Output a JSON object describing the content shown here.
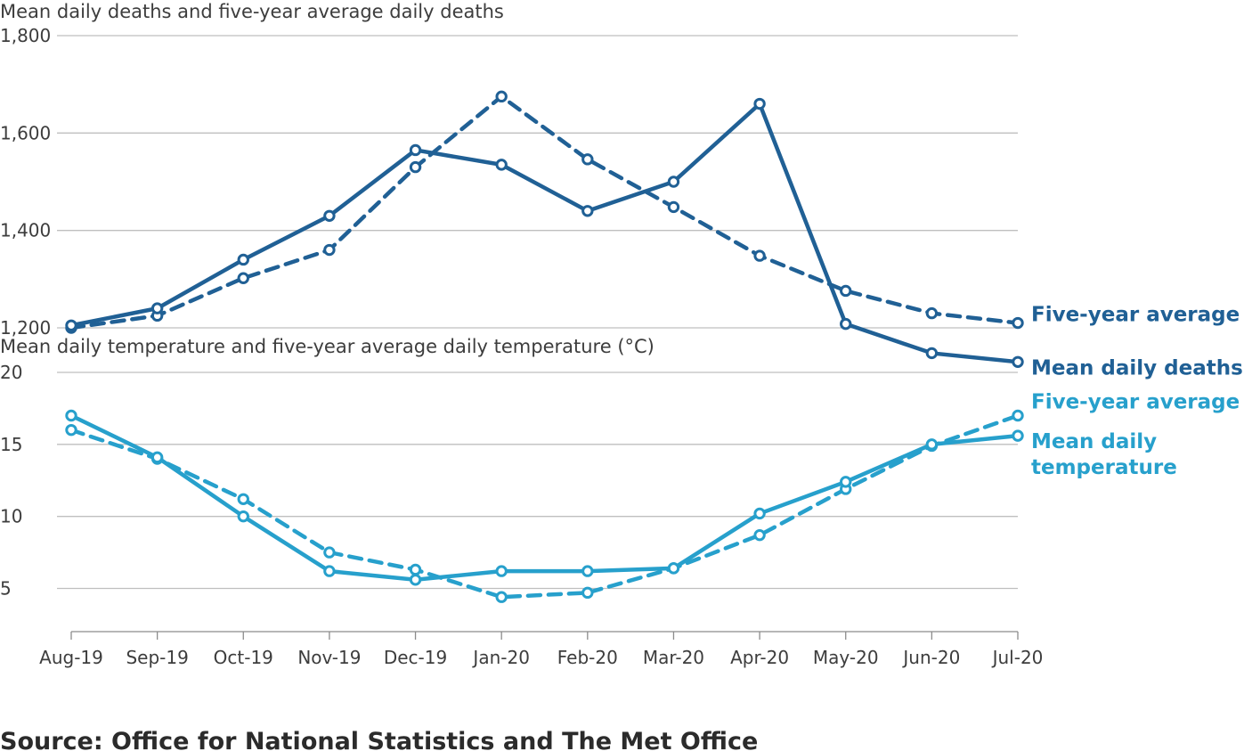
{
  "chart_data": [
    {
      "type": "line",
      "title": "Mean daily deaths and five-year average daily deaths",
      "categories": [
        "Aug-19",
        "Sep-19",
        "Oct-19",
        "Nov-19",
        "Dec-19",
        "Jan-20",
        "Feb-20",
        "Mar-20",
        "Apr-20",
        "May-20",
        "Jun-20",
        "Jul-20"
      ],
      "ylim": [
        1200,
        1800
      ],
      "yticks": [
        "1,200",
        "1,400",
        "1,600",
        "1,800"
      ],
      "yticks_values": [
        1200,
        1400,
        1600,
        1800
      ],
      "grid": true,
      "legend": "direct labels at line ends (right)",
      "color": "#206095",
      "series": [
        {
          "name": "Mean daily deaths",
          "style": "solid",
          "values": [
            1205,
            1240,
            1340,
            1430,
            1565,
            1535,
            1440,
            1500,
            1660,
            1208,
            1148,
            1130
          ]
        },
        {
          "name": "Five-year average",
          "style": "dashed",
          "values": [
            1200,
            1225,
            1302,
            1360,
            1530,
            1675,
            1546,
            1448,
            1348,
            1276,
            1230,
            1210
          ]
        }
      ]
    },
    {
      "type": "line",
      "title": "Mean daily temperature and five-year average daily temperature (°C)",
      "categories": [
        "Aug-19",
        "Sep-19",
        "Oct-19",
        "Nov-19",
        "Dec-19",
        "Jan-20",
        "Feb-20",
        "Mar-20",
        "Apr-20",
        "May-20",
        "Jun-20",
        "Jul-20"
      ],
      "ylim": [
        2,
        20
      ],
      "yticks": [
        "5",
        "10",
        "15",
        "20"
      ],
      "yticks_values": [
        5,
        10,
        15,
        20
      ],
      "grid": true,
      "legend": "direct labels at line ends (right)",
      "color": "#27a0cc",
      "series": [
        {
          "name": "Mean daily temperature",
          "label_lines": [
            "Mean daily",
            "temperature"
          ],
          "style": "solid",
          "values": [
            17.0,
            14.1,
            10.0,
            6.2,
            5.6,
            6.2,
            6.2,
            6.4,
            10.2,
            12.4,
            15.0,
            15.6
          ]
        },
        {
          "name": "Five-year average",
          "style": "dashed",
          "values": [
            16.0,
            14.0,
            11.2,
            7.5,
            6.3,
            4.4,
            4.7,
            6.4,
            8.7,
            11.9,
            14.9,
            17.0
          ]
        }
      ]
    }
  ],
  "source": "Source: Office for National Statistics and The Met Office"
}
